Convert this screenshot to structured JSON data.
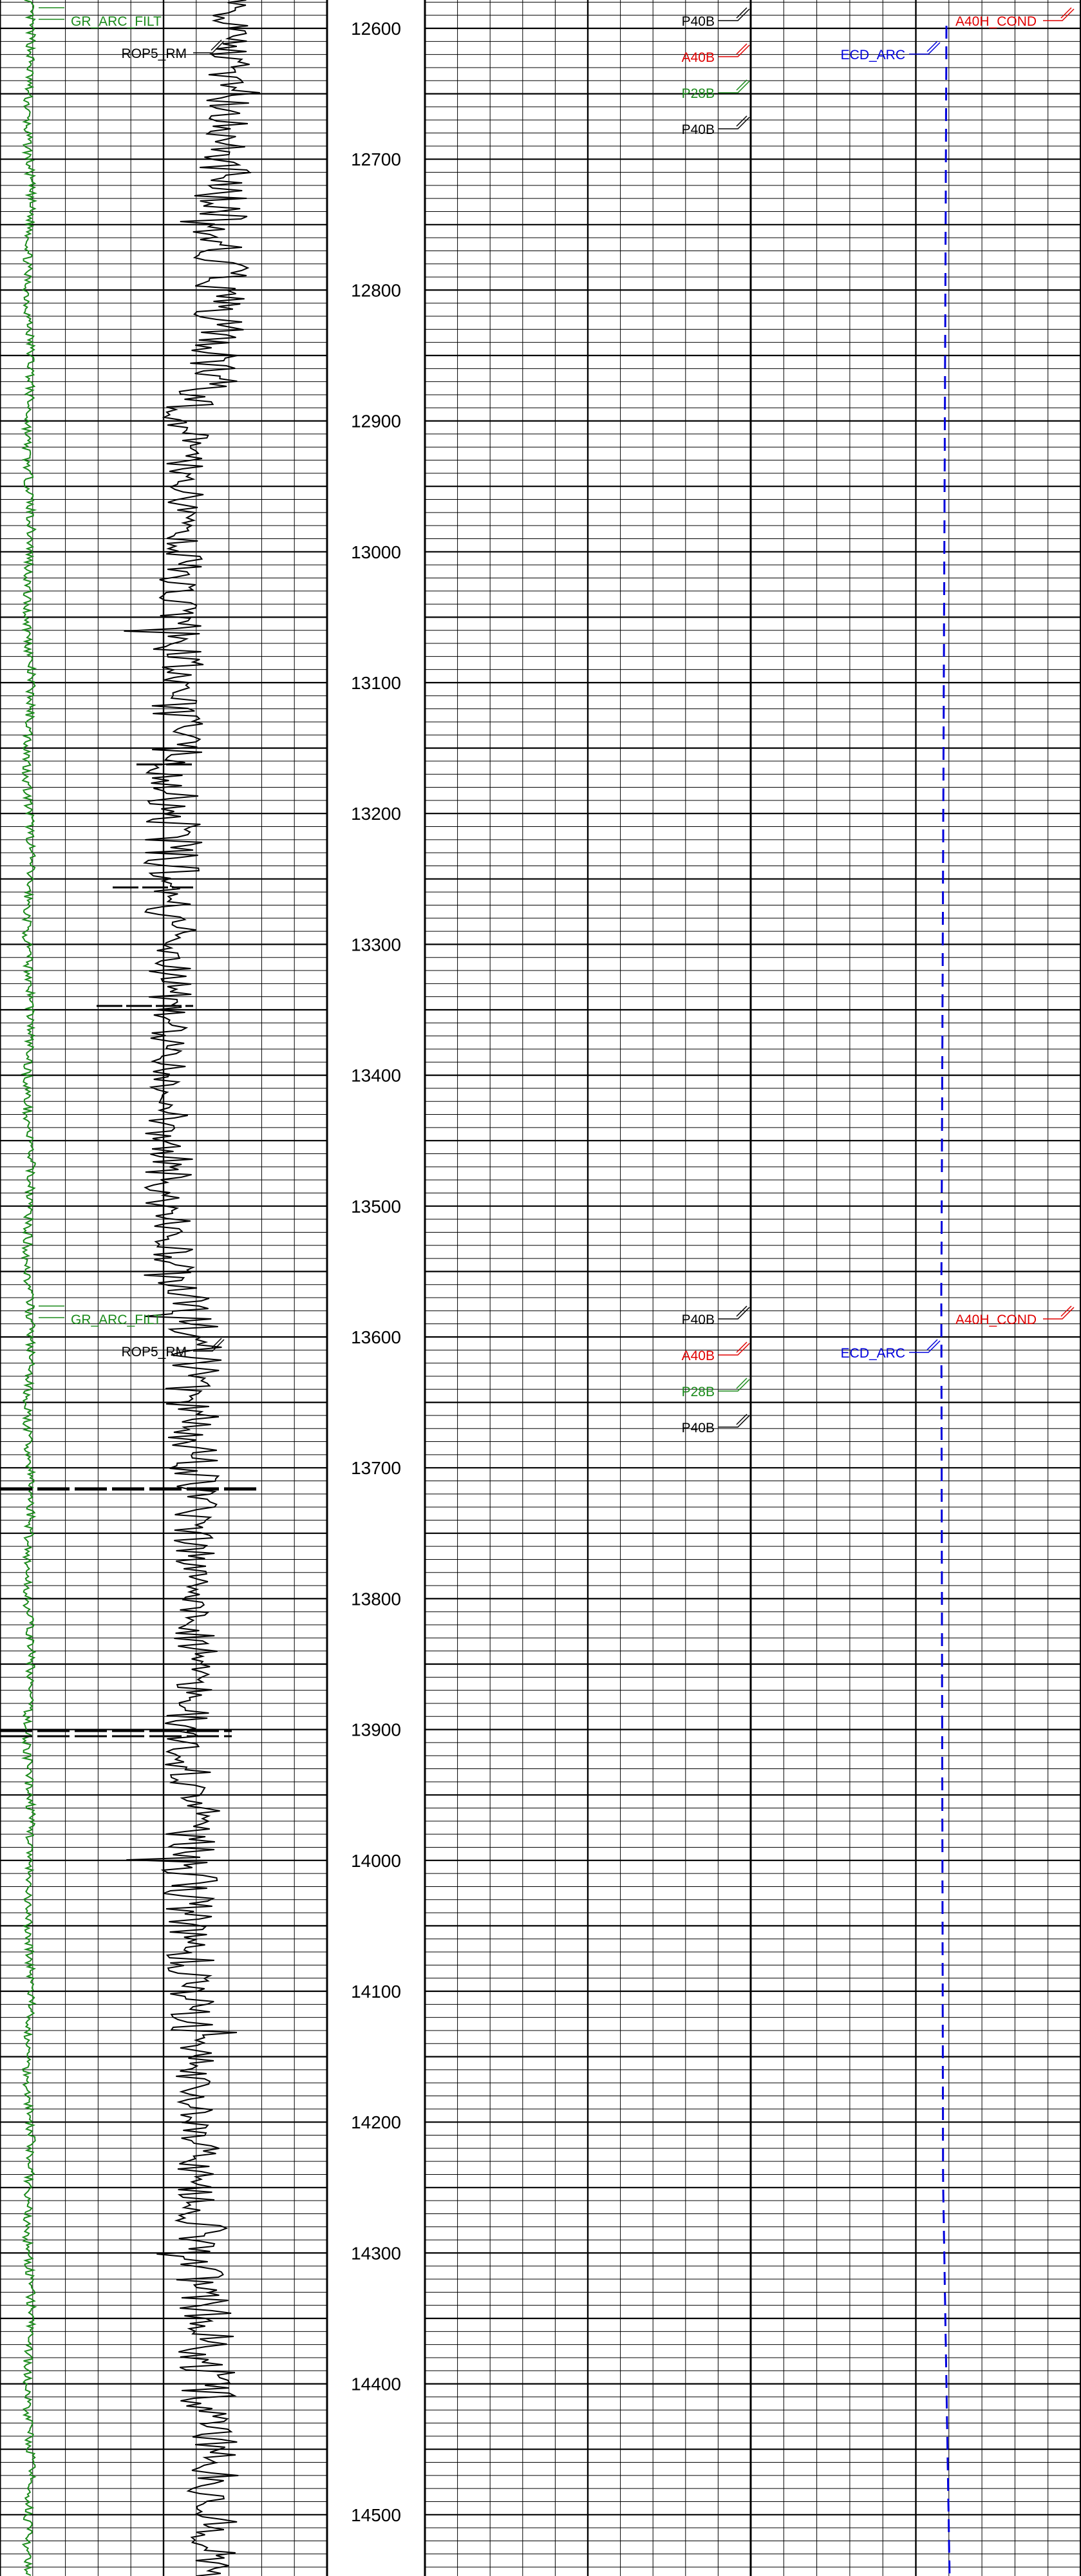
{
  "colors": {
    "green": "#1a8a1a",
    "black": "#000000",
    "red": "#e00000",
    "blue": "#0000dd",
    "grid": "#000000"
  },
  "depth_track": {
    "labels": [
      "12600",
      "12700",
      "12800",
      "12900",
      "13000",
      "13100",
      "13200",
      "13300",
      "13400",
      "13500",
      "13600",
      "13700",
      "13800",
      "13900",
      "14000",
      "14100",
      "14200",
      "14300",
      "14400",
      "14500"
    ]
  },
  "curve_headers": [
    {
      "depth": "12600",
      "track1": [
        {
          "text": "GR_ARC_FILT",
          "color": "green"
        },
        {
          "text": "ROP5_RM",
          "color": "black"
        }
      ],
      "track3": [
        {
          "text": "P40B",
          "color": "black"
        },
        {
          "text": "A40B",
          "color": "red"
        },
        {
          "text": "P28B",
          "color": "green"
        },
        {
          "text": "P40B",
          "color": "black"
        }
      ],
      "track4": [
        {
          "text": "ECD_ARC",
          "color": "blue"
        },
        {
          "text": "A40H_COND",
          "color": "red"
        }
      ]
    },
    {
      "depth": "13600",
      "track1": [
        {
          "text": "GR_ARC_FILT",
          "color": "green"
        },
        {
          "text": "ROP5_RM",
          "color": "black"
        }
      ],
      "track3": [
        {
          "text": "P40B",
          "color": "black"
        },
        {
          "text": "A40B",
          "color": "red"
        },
        {
          "text": "P28B",
          "color": "green"
        },
        {
          "text": "P40B",
          "color": "black"
        }
      ],
      "track4": [
        {
          "text": "ECD_ARC",
          "color": "blue"
        },
        {
          "text": "A40H_COND",
          "color": "red"
        }
      ]
    }
  ]
}
